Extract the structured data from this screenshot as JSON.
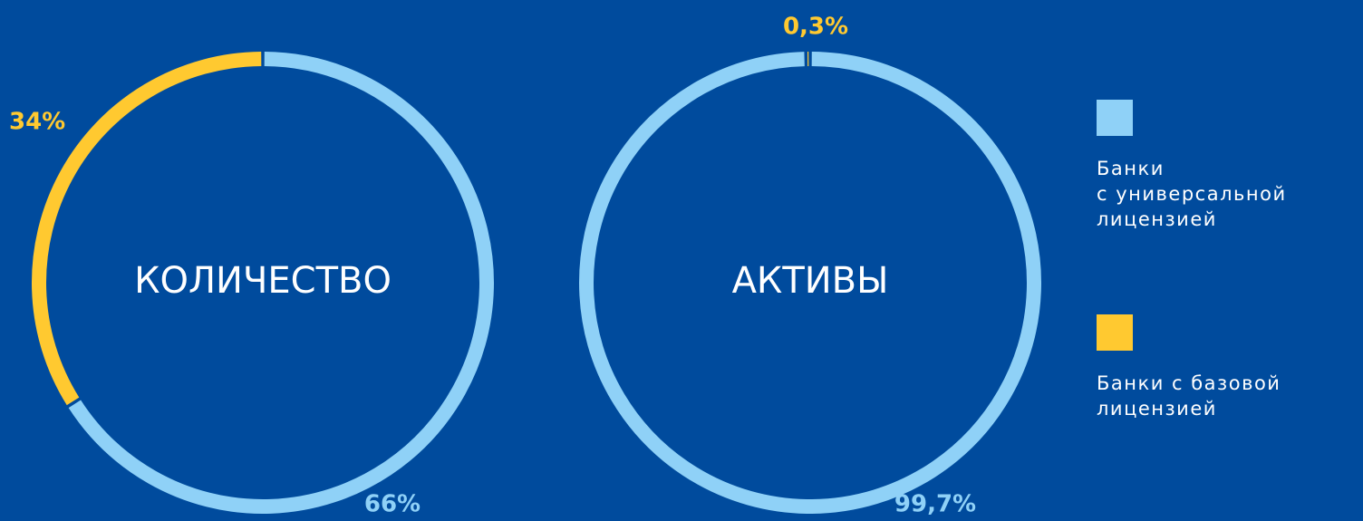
{
  "chart_data": [
    {
      "type": "donut",
      "title": "КОЛИЧЕСТВО",
      "values": [
        66,
        34
      ],
      "value_labels": [
        "66%",
        "34%"
      ],
      "colors": [
        "#8fd1f7",
        "#ffc930"
      ]
    },
    {
      "type": "donut",
      "title": "АКТИВЫ",
      "values": [
        99.7,
        0.3
      ],
      "value_labels": [
        "99,7%",
        "0,3%"
      ],
      "colors": [
        "#8fd1f7",
        "#ffc930"
      ]
    }
  ],
  "legend": [
    {
      "label": "Банки\nс универсальной\nлицензией",
      "color": "#8fd1f7"
    },
    {
      "label": "Банки с базовой\nлицензией",
      "color": "#ffc930"
    }
  ]
}
